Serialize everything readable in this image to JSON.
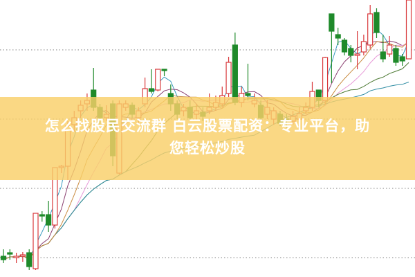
{
  "banner": {
    "line1": "怎么找股民交流群 白云股票配资：专业平台，助",
    "line2": "您轻松炒股"
  },
  "colors": {
    "up": "#d9393c",
    "down": "#1f8a2a",
    "banner": "#f9d069",
    "grid": "#9a9a9a",
    "ma": [
      "#3a9bbf",
      "#8a3f70",
      "#e79ad8",
      "#4d7a34",
      "#2f8da3",
      "#c98a3e"
    ]
  },
  "chart_data": {
    "type": "candlestick",
    "title": "",
    "grid": "horizontal-dotted",
    "ylim": [
      0,
      400
    ],
    "candles": [
      [
        30,
        25,
        40,
        20
      ],
      [
        35,
        33,
        40,
        25
      ],
      [
        28,
        30,
        35,
        20
      ],
      [
        30,
        32,
        36,
        22
      ],
      [
        35,
        15,
        40,
        10
      ],
      [
        12,
        92,
        92,
        10
      ],
      [
        90,
        88,
        95,
        80
      ],
      [
        90,
        75,
        110,
        65
      ],
      [
        75,
        158,
        158,
        70
      ],
      [
        158,
        160,
        162,
        150
      ],
      [
        160,
        218,
        225,
        140
      ],
      [
        220,
        230,
        240,
        210
      ],
      [
        240,
        248,
        255,
        230
      ],
      [
        250,
        255,
        265,
        240
      ],
      [
        270,
        245,
        302,
        240
      ],
      [
        245,
        230,
        250,
        220
      ],
      [
        230,
        235,
        248,
        225
      ],
      [
        250,
        175,
        255,
        160
      ],
      [
        150,
        250,
        255,
        148
      ],
      [
        245,
        250,
        255,
        240
      ],
      [
        248,
        235,
        252,
        230
      ],
      [
        230,
        240,
        245,
        220
      ],
      [
        250,
        272,
        288,
        245
      ],
      [
        272,
        268,
        300,
        265
      ],
      [
        270,
        300,
        300,
        268
      ],
      [
        300,
        298,
        300,
        290
      ],
      [
        265,
        250,
        278,
        240
      ],
      [
        250,
        235,
        255,
        228
      ],
      [
        240,
        245,
        250,
        232
      ],
      [
        245,
        230,
        255,
        225
      ],
      [
        235,
        240,
        250,
        228
      ],
      [
        238,
        232,
        245,
        225
      ],
      [
        240,
        245,
        265,
        235
      ],
      [
        245,
        252,
        262,
        240
      ],
      [
        250,
        262,
        275,
        245
      ],
      [
        265,
        310,
        318,
        260
      ],
      [
        335,
        252,
        353,
        248
      ],
      [
        252,
        265,
        275,
        245
      ],
      [
        265,
        262,
        308,
        255
      ],
      [
        250,
        255,
        265,
        245
      ],
      [
        248,
        230,
        255,
        225
      ],
      [
        235,
        245,
        256,
        228
      ],
      [
        228,
        240,
        245,
        220
      ],
      [
        235,
        222,
        240,
        218
      ],
      [
        228,
        226,
        235,
        215
      ],
      [
        225,
        232,
        240,
        220
      ],
      [
        228,
        236,
        245,
        222
      ],
      [
        240,
        245,
        252,
        235
      ],
      [
        245,
        268,
        282,
        240
      ],
      [
        270,
        255,
        270,
        245
      ],
      [
        255,
        317,
        318,
        250
      ],
      [
        380,
        355,
        380,
        280
      ],
      [
        350,
        345,
        360,
        335
      ],
      [
        342,
        325,
        345,
        320
      ],
      [
        330,
        320,
        335,
        310
      ],
      [
        320,
        322,
        355,
        300
      ],
      [
        325,
        340,
        350,
        320
      ],
      [
        335,
        380,
        393,
        330
      ],
      [
        382,
        353,
        388,
        345
      ],
      [
        325,
        315,
        350,
        310
      ],
      [
        322,
        335,
        348,
        318
      ],
      [
        330,
        310,
        335,
        305
      ],
      [
        318,
        312,
        322,
        305
      ],
      [
        315,
        400,
        400,
        315
      ]
    ],
    "candle_fields": [
      "open",
      "close",
      "high",
      "low"
    ]
  }
}
